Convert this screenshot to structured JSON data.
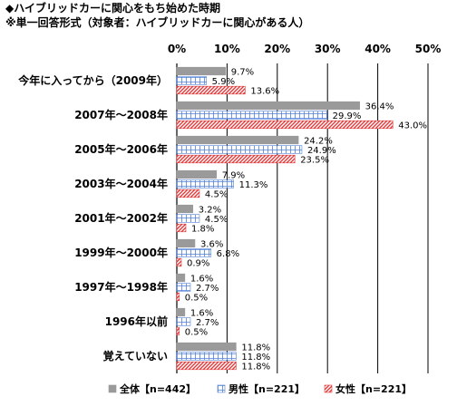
{
  "title": "◆ハイブリッドカーに関心をもち始めた時期",
  "subtitle": "※単一回答形式（対象者：ハイブリッドカーに関心がある人）",
  "colors": {
    "all": "#9a9a9a",
    "male": "#4f7fd6",
    "female": "#e03a3a",
    "grid": "#000000"
  },
  "chart_data": {
    "type": "bar",
    "orientation": "horizontal",
    "categories": [
      "今年に入ってから（2009年）",
      "2007年～2008年",
      "2005年～2006年",
      "2003年～2004年",
      "2001年～2002年",
      "1999年～2000年",
      "1997年～1998年",
      "1996年以前",
      "覚えていない"
    ],
    "series": [
      {
        "name": "全体【n=442】",
        "values": [
          9.7,
          36.4,
          24.2,
          7.9,
          3.2,
          3.6,
          1.6,
          1.6,
          11.8
        ],
        "labels": [
          "9.7%",
          "36.4%",
          "24.2%",
          "7.9%",
          "3.2%",
          "3.6%",
          "1.6%",
          "1.6%",
          "11.8%"
        ]
      },
      {
        "name": "男性【n=221】",
        "values": [
          5.9,
          29.9,
          24.9,
          11.3,
          4.5,
          6.8,
          2.7,
          2.7,
          11.8
        ],
        "labels": [
          "5.9%",
          "29.9%",
          "24.9%",
          "11.3%",
          "4.5%",
          "6.8%",
          "2.7%",
          "2.7%",
          "11.8%"
        ]
      },
      {
        "name": "女性【n=221】",
        "values": [
          13.6,
          43.0,
          23.5,
          4.5,
          1.8,
          0.9,
          0.5,
          0.5,
          11.8
        ],
        "labels": [
          "13.6%",
          "43.0%",
          "23.5%",
          "4.5%",
          "1.8%",
          "0.9%",
          "0.5%",
          "0.5%",
          "11.8%"
        ]
      }
    ],
    "xlim": [
      0,
      50
    ],
    "xticks": [
      0,
      10,
      20,
      30,
      40,
      50
    ],
    "xtick_labels": [
      "0%",
      "10%",
      "20%",
      "30%",
      "40%",
      "50%"
    ],
    "grid": true,
    "legend_position": "bottom"
  }
}
